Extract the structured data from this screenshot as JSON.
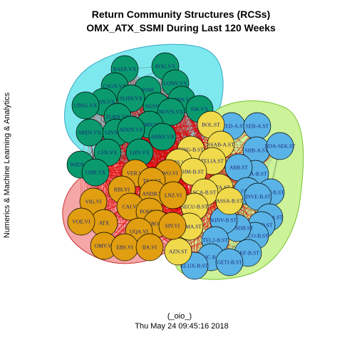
{
  "title_line1": "Return Community Structures (RCSs)",
  "title_line2": "OMX_ATX_SSMI During Last 120 Weeks",
  "side_label": "Numerics & Machine Learning & Analytics",
  "footer_line1": "(_oio_)",
  "footer_line2": "Thu May 24 09:45:16 2018",
  "colors": {
    "green": "#0a9a6e",
    "blue": "#5ab3e6",
    "yellow": "#f0d94a",
    "orange": "#e09e10",
    "hull_green": "#7de8ee",
    "hull_blue": "#ccf29a",
    "hull_orange": "#f5a6a6",
    "edges": "#e00000"
  },
  "communities": [
    {
      "id": "green",
      "nodes": [
        "BAER.VX",
        "ROG.VX",
        "LONN.VX",
        "CSGN.VX",
        "SSMI",
        "NESN.VX",
        "SLHN.VX",
        "GEBN.VX",
        "UBSG.VX",
        "SGSN.VX",
        "NOVN.VX",
        "SIK.VX",
        "ZURN.VX",
        "SCMN.VX",
        "SREN.VX",
        "GIVN.VX",
        "ADEN.VX",
        "ABBN.VX",
        "CFR.VX",
        "LHN.VX",
        "WIEN.VI",
        "UHR.VX"
      ]
    },
    {
      "id": "blue",
      "nodes": [
        "SWED-A.ST",
        "SEB-A.ST",
        "SHB-A.ST",
        "NDA-SEK.ST",
        "SKA-B.ST",
        "ABB.ST",
        "OMX",
        "VOLV-B.ST",
        "INVE-B.ST",
        "ATCO-A.ST",
        "SAND.ST",
        "ATCO-B.ST",
        "ALIV-SDB.ST",
        "KINV-B.ST",
        "TEL2-B.ST",
        "SKF-B.ST",
        "ERIC-B.ST",
        "GETI-B.ST",
        "ELUX-B.ST"
      ]
    },
    {
      "id": "yellow",
      "nodes": [
        "BOL.ST",
        "SSAB-A.ST",
        "FING-B.ST",
        "TELIA.ST",
        "ATS.VI",
        "HM-B.ST",
        "ALFA.ST",
        "SCA-B.ST",
        "ASSA-B.ST",
        "SECU-B.ST",
        "SWMA.ST",
        "AZN.ST"
      ]
    },
    {
      "id": "orange",
      "nodes": [
        "VER.VI",
        "BWO.VI",
        "TKA.VI",
        "RBI.VI",
        "ANDR.VI",
        "LNZ.VI",
        "VIG.VI",
        "CAI.VI",
        "POST.VI",
        "ATX",
        "VOE.VI",
        "SBO.VI",
        "SPI.VI",
        "UQA.VI",
        "OMV.VI",
        "EBS.VI",
        "IIA.VI"
      ]
    }
  ]
}
